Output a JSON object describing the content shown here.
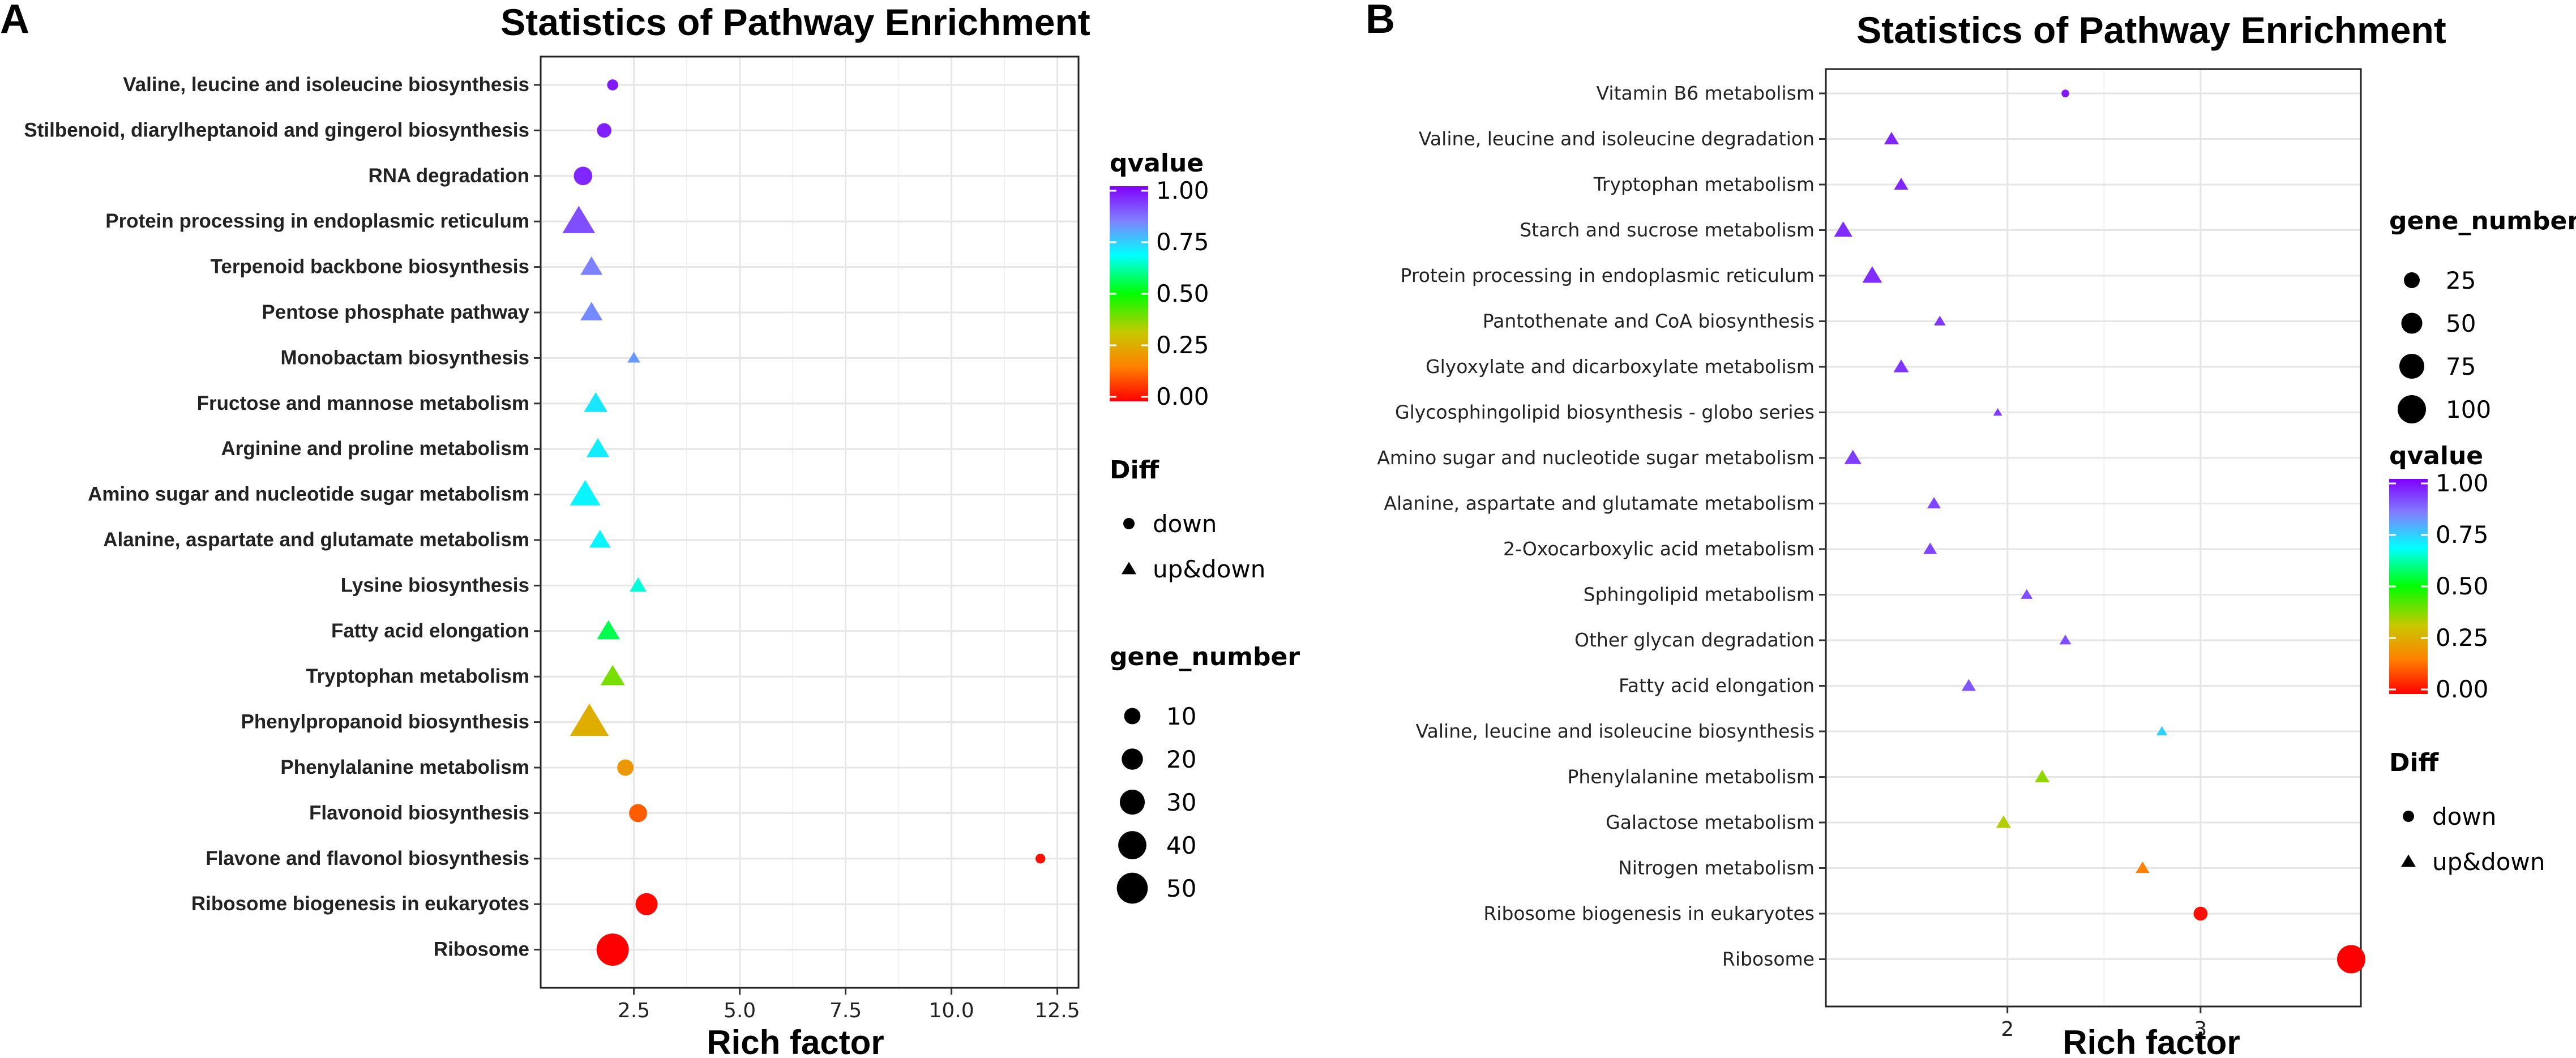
{
  "panels": [
    {
      "letter": "A",
      "chart_data": {
        "type": "scatter",
        "title": "Statistics of Pathway Enrichment",
        "xlabel": "Rich factor",
        "ylabel": "",
        "xlim": [
          0.3,
          13.0
        ],
        "xticks": [
          2.5,
          5.0,
          7.5,
          10.0,
          12.5
        ],
        "xtick_labels": [
          "2.5",
          "5.0",
          "7.5",
          "10.0",
          "12.5"
        ],
        "points": [
          {
            "pathway": "Valine, leucine and isoleucine biosynthesis",
            "rich_factor": 2.0,
            "qvalue": 0.97,
            "gene_number": 3,
            "diff": "down"
          },
          {
            "pathway": "Stilbenoid, diarylheptanoid and gingerol biosynthesis",
            "rich_factor": 1.8,
            "qvalue": 0.96,
            "gene_number": 7,
            "diff": "down"
          },
          {
            "pathway": "RNA degradation",
            "rich_factor": 1.3,
            "qvalue": 0.95,
            "gene_number": 14,
            "diff": "down"
          },
          {
            "pathway": "Protein processing in endoplasmic reticulum",
            "rich_factor": 1.2,
            "qvalue": 0.9,
            "gene_number": 30,
            "diff": "up&down"
          },
          {
            "pathway": "Terpenoid backbone biosynthesis",
            "rich_factor": 1.5,
            "qvalue": 0.83,
            "gene_number": 11,
            "diff": "up&down"
          },
          {
            "pathway": "Pentose phosphate pathway",
            "rich_factor": 1.5,
            "qvalue": 0.82,
            "gene_number": 11,
            "diff": "up&down"
          },
          {
            "pathway": "Monobactam biosynthesis",
            "rich_factor": 2.5,
            "qvalue": 0.8,
            "gene_number": 2,
            "diff": "up&down"
          },
          {
            "pathway": "Fructose and mannose metabolism",
            "rich_factor": 1.6,
            "qvalue": 0.7,
            "gene_number": 13,
            "diff": "up&down"
          },
          {
            "pathway": "Arginine and proline metabolism",
            "rich_factor": 1.65,
            "qvalue": 0.69,
            "gene_number": 12,
            "diff": "up&down"
          },
          {
            "pathway": "Amino sugar and nucleotide sugar metabolism",
            "rich_factor": 1.35,
            "qvalue": 0.68,
            "gene_number": 25,
            "diff": "up&down"
          },
          {
            "pathway": "Alanine, aspartate and glutamate metabolism",
            "rich_factor": 1.7,
            "qvalue": 0.68,
            "gene_number": 10,
            "diff": "up&down"
          },
          {
            "pathway": "Lysine biosynthesis",
            "rich_factor": 2.6,
            "qvalue": 0.64,
            "gene_number": 5,
            "diff": "up&down"
          },
          {
            "pathway": "Fatty acid elongation",
            "rich_factor": 1.9,
            "qvalue": 0.55,
            "gene_number": 12,
            "diff": "up&down"
          },
          {
            "pathway": "Tryptophan metabolism",
            "rich_factor": 2.0,
            "qvalue": 0.4,
            "gene_number": 14,
            "diff": "up&down"
          },
          {
            "pathway": "Phenylpropanoid biosynthesis",
            "rich_factor": 1.45,
            "qvalue": 0.27,
            "gene_number": 45,
            "diff": "up&down"
          },
          {
            "pathway": "Phenylalanine metabolism",
            "rich_factor": 2.3,
            "qvalue": 0.22,
            "gene_number": 10,
            "diff": "down"
          },
          {
            "pathway": "Flavonoid biosynthesis",
            "rich_factor": 2.6,
            "qvalue": 0.12,
            "gene_number": 13,
            "diff": "down"
          },
          {
            "pathway": "Flavone and flavonol biosynthesis",
            "rich_factor": 12.1,
            "qvalue": 0.02,
            "gene_number": 2,
            "diff": "down"
          },
          {
            "pathway": "Ribosome biogenesis in eukaryotes",
            "rich_factor": 2.8,
            "qvalue": 0.01,
            "gene_number": 22,
            "diff": "down"
          },
          {
            "pathway": "Ribosome",
            "rich_factor": 2.0,
            "qvalue": 0.0,
            "gene_number": 55,
            "diff": "down"
          }
        ],
        "legends": [
          {
            "kind": "colorbar",
            "title": "qvalue",
            "ticks": [
              "1.00",
              "0.75",
              "0.50",
              "0.25",
              "0.00"
            ]
          },
          {
            "kind": "shape",
            "title": "Diff",
            "items": [
              "down",
              "up&down"
            ]
          },
          {
            "kind": "size",
            "title": "gene_number",
            "items": [
              "10",
              "20",
              "30",
              "40",
              "50"
            ],
            "values": [
              10,
              20,
              30,
              40,
              50
            ]
          }
        ]
      }
    },
    {
      "letter": "B",
      "chart_data": {
        "type": "scatter",
        "title": "Statistics of Pathway Enrichment",
        "xlabel": "Rich factor",
        "ylabel": "",
        "xlim": [
          1.06,
          3.83
        ],
        "xticks": [
          2,
          3
        ],
        "xtick_labels": [
          "2",
          "3"
        ],
        "points": [
          {
            "pathway": "Vitamin B6 metabolism",
            "rich_factor": 2.3,
            "qvalue": 0.97,
            "gene_number": 3,
            "diff": "down"
          },
          {
            "pathway": "Valine, leucine and isoleucine degradation",
            "rich_factor": 1.4,
            "qvalue": 0.95,
            "gene_number": 10,
            "diff": "up&down"
          },
          {
            "pathway": "Tryptophan metabolism",
            "rich_factor": 1.45,
            "qvalue": 0.95,
            "gene_number": 9,
            "diff": "up&down"
          },
          {
            "pathway": "Starch and sucrose metabolism",
            "rich_factor": 1.15,
            "qvalue": 0.94,
            "gene_number": 18,
            "diff": "up&down"
          },
          {
            "pathway": "Protein processing in endoplasmic reticulum",
            "rich_factor": 1.3,
            "qvalue": 0.94,
            "gene_number": 22,
            "diff": "up&down"
          },
          {
            "pathway": "Pantothenate and CoA biosynthesis",
            "rich_factor": 1.65,
            "qvalue": 0.93,
            "gene_number": 5,
            "diff": "up&down"
          },
          {
            "pathway": "Glyoxylate and dicarboxylate metabolism",
            "rich_factor": 1.45,
            "qvalue": 0.93,
            "gene_number": 11,
            "diff": "up&down"
          },
          {
            "pathway": "Glycosphingolipid biosynthesis - globo series",
            "rich_factor": 1.95,
            "qvalue": 0.92,
            "gene_number": 2,
            "diff": "up&down"
          },
          {
            "pathway": "Amino sugar and nucleotide sugar metabolism",
            "rich_factor": 1.2,
            "qvalue": 0.92,
            "gene_number": 15,
            "diff": "up&down"
          },
          {
            "pathway": "Alanine, aspartate and glutamate metabolism",
            "rich_factor": 1.62,
            "qvalue": 0.91,
            "gene_number": 8,
            "diff": "up&down"
          },
          {
            "pathway": "2-Oxocarboxylic acid metabolism",
            "rich_factor": 1.6,
            "qvalue": 0.91,
            "gene_number": 8,
            "diff": "up&down"
          },
          {
            "pathway": "Sphingolipid metabolism",
            "rich_factor": 2.1,
            "qvalue": 0.9,
            "gene_number": 5,
            "diff": "up&down"
          },
          {
            "pathway": "Other glycan degradation",
            "rich_factor": 2.3,
            "qvalue": 0.9,
            "gene_number": 5,
            "diff": "up&down"
          },
          {
            "pathway": "Fatty acid elongation",
            "rich_factor": 1.8,
            "qvalue": 0.89,
            "gene_number": 9,
            "diff": "up&down"
          },
          {
            "pathway": "Valine, leucine and isoleucine biosynthesis",
            "rich_factor": 2.8,
            "qvalue": 0.73,
            "gene_number": 4,
            "diff": "up&down"
          },
          {
            "pathway": "Phenylalanine metabolism",
            "rich_factor": 2.18,
            "qvalue": 0.38,
            "gene_number": 10,
            "diff": "up&down"
          },
          {
            "pathway": "Galactose metabolism",
            "rich_factor": 1.98,
            "qvalue": 0.35,
            "gene_number": 10,
            "diff": "up&down"
          },
          {
            "pathway": "Nitrogen metabolism",
            "rich_factor": 2.7,
            "qvalue": 0.17,
            "gene_number": 8,
            "diff": "up&down"
          },
          {
            "pathway": "Ribosome biogenesis in eukaryotes",
            "rich_factor": 3.0,
            "qvalue": 0.02,
            "gene_number": 18,
            "diff": "down"
          },
          {
            "pathway": "Ribosome",
            "rich_factor": 3.78,
            "qvalue": 0.0,
            "gene_number": 100,
            "diff": "down"
          }
        ],
        "legends": [
          {
            "kind": "size",
            "title": "gene_number",
            "items": [
              "25",
              "50",
              "75",
              "100"
            ],
            "values": [
              25,
              50,
              75,
              100
            ]
          },
          {
            "kind": "colorbar",
            "title": "qvalue",
            "ticks": [
              "1.00",
              "0.75",
              "0.50",
              "0.25",
              "0.00"
            ]
          },
          {
            "kind": "shape",
            "title": "Diff",
            "items": [
              "down",
              "up&down"
            ]
          }
        ]
      }
    }
  ],
  "colors": {
    "qvalue_gradient": [
      "#ff0000",
      "#ff8000",
      "#c8c800",
      "#00ff00",
      "#00ffff",
      "#8080ff",
      "#8000ff"
    ],
    "grid": "#e6e6e6",
    "frame": "#222222"
  }
}
